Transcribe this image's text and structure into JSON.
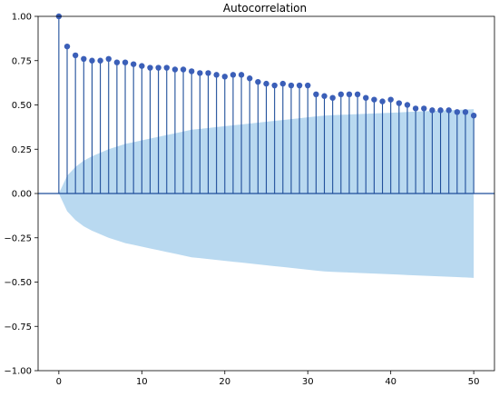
{
  "chart_data": {
    "type": "stem",
    "title": "Autocorrelation",
    "xlabel": "",
    "ylabel": "",
    "xlim": [
      -2.5,
      52.5
    ],
    "ylim": [
      -1.0,
      1.0
    ],
    "xticks": [
      0,
      10,
      20,
      30,
      40,
      50
    ],
    "yticks": [
      -1.0,
      -0.75,
      -0.5,
      -0.25,
      0.0,
      0.25,
      0.5,
      0.75,
      1.0
    ],
    "ytick_labels": [
      "−1.00",
      "−0.75",
      "−0.50",
      "−0.25",
      "0.00",
      "0.25",
      "0.50",
      "0.75",
      "1.00"
    ],
    "xtick_labels": [
      "0",
      "10",
      "20",
      "30",
      "40",
      "50"
    ],
    "lags": [
      0,
      1,
      2,
      3,
      4,
      5,
      6,
      7,
      8,
      9,
      10,
      11,
      12,
      13,
      14,
      15,
      16,
      17,
      18,
      19,
      20,
      21,
      22,
      23,
      24,
      25,
      26,
      27,
      28,
      29,
      30,
      31,
      32,
      33,
      34,
      35,
      36,
      37,
      38,
      39,
      40,
      41,
      42,
      43,
      44,
      45,
      46,
      47,
      48,
      49,
      50
    ],
    "values": [
      1.0,
      0.83,
      0.78,
      0.76,
      0.75,
      0.75,
      0.76,
      0.74,
      0.74,
      0.73,
      0.72,
      0.71,
      0.71,
      0.71,
      0.7,
      0.7,
      0.69,
      0.68,
      0.68,
      0.67,
      0.66,
      0.67,
      0.67,
      0.65,
      0.63,
      0.62,
      0.61,
      0.62,
      0.61,
      0.61,
      0.61,
      0.56,
      0.55,
      0.54,
      0.56,
      0.56,
      0.56,
      0.54,
      0.53,
      0.52,
      0.53,
      0.51,
      0.5,
      0.48,
      0.48,
      0.47,
      0.47,
      0.47,
      0.46,
      0.46,
      0.44
    ],
    "confidence_band_upper": [
      0.0,
      0.1,
      0.15,
      0.185,
      0.21,
      0.23,
      0.25,
      0.265,
      0.28,
      0.29,
      0.3,
      0.31,
      0.32,
      0.33,
      0.34,
      0.35,
      0.36,
      0.365,
      0.37,
      0.375,
      0.38,
      0.385,
      0.39,
      0.395,
      0.4,
      0.405,
      0.41,
      0.415,
      0.42,
      0.425,
      0.43,
      0.435,
      0.44,
      0.442,
      0.444,
      0.446,
      0.448,
      0.45,
      0.452,
      0.454,
      0.456,
      0.458,
      0.46,
      0.462,
      0.464,
      0.466,
      0.468,
      0.47,
      0.472,
      0.474,
      0.476
    ],
    "grid": false,
    "colors": {
      "stem": "#1f4e9a",
      "marker": "#3b5fb8",
      "band": "#a8d0ec",
      "zero_line": "#1f4e9a"
    }
  }
}
